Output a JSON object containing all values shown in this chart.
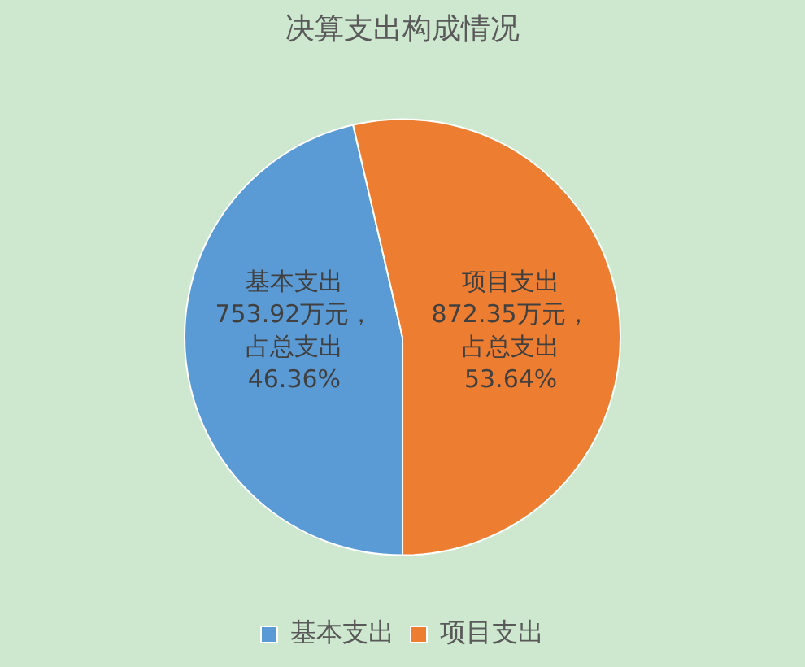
{
  "chart_data": {
    "type": "pie",
    "title": "决算支出构成情况",
    "categories": [
      "基本支出",
      "项目支出"
    ],
    "values": [
      753.92,
      872.35
    ],
    "colors": [
      "#5b9bd5",
      "#ed7d31"
    ],
    "value_labels": [
      "基本支出753.92万元，占总支出46.36%",
      "项目支出872.35万元，占总支出53.64%"
    ],
    "legend": "bottom"
  }
}
